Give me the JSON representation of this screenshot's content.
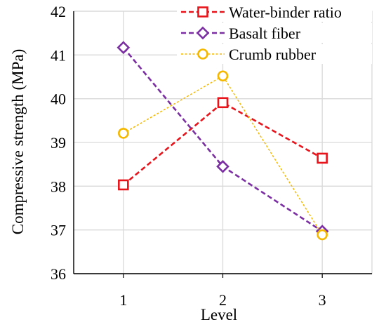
{
  "chart_data": {
    "type": "line",
    "title": "",
    "xlabel": "Level",
    "ylabel": "Compressive strength (MPa)",
    "categories": [
      "1",
      "2",
      "3"
    ],
    "x": [
      1,
      2,
      3
    ],
    "ylim": [
      36,
      42
    ],
    "yticks": [
      "36",
      "37",
      "38",
      "39",
      "40",
      "41",
      "42"
    ],
    "grid": true,
    "legend_position": "top-right",
    "series": [
      {
        "name": "Water-binder ratio",
        "values": [
          38.03,
          39.91,
          38.64
        ],
        "color": "#e8141c",
        "marker": "square",
        "line_style": "dashed"
      },
      {
        "name": "Basalt fiber",
        "values": [
          41.17,
          38.45,
          36.97
        ],
        "color": "#7b2fa3",
        "marker": "diamond",
        "line_style": "dashed"
      },
      {
        "name": "Crumb rubber",
        "values": [
          39.21,
          40.52,
          36.89
        ],
        "color": "#f5b800",
        "marker": "circle",
        "line_style": "dotted"
      }
    ]
  }
}
